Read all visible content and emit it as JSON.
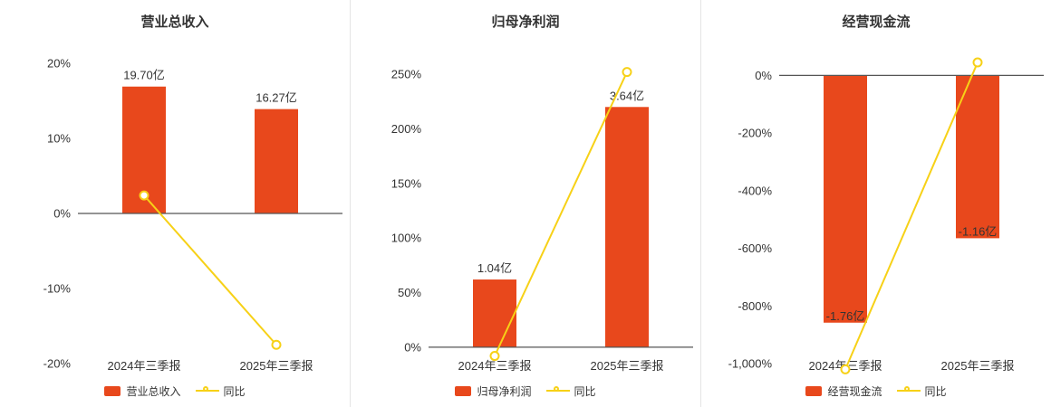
{
  "colors": {
    "bar": "#e8481c",
    "line": "#f7d117",
    "axis_line": "#555555",
    "text": "#333333",
    "divider": "#e4e4e4",
    "background": "#ffffff"
  },
  "chart_data": [
    {
      "type": "bar-line",
      "title": "营业总收入",
      "categories": [
        "2024年三季报",
        "2025年三季报"
      ],
      "bar_series": {
        "name": "营业总收入",
        "value_labels": [
          "19.70亿",
          "16.27亿"
        ],
        "plotted_pct": [
          16.9,
          13.9
        ]
      },
      "line_series": {
        "name": "同比",
        "plotted_pct": [
          2.4,
          -17.5
        ]
      },
      "y_axis": {
        "min": -20,
        "max": 20,
        "ticks": [
          {
            "v": 20,
            "label": "20%"
          },
          {
            "v": 10,
            "label": "10%"
          },
          {
            "v": 0,
            "label": "0%"
          },
          {
            "v": -10,
            "label": "-10%"
          },
          {
            "v": -20,
            "label": "-20%"
          }
        ]
      },
      "legend_position": "bottom",
      "grid": false
    },
    {
      "type": "bar-line",
      "title": "归母净利润",
      "categories": [
        "2024年三季报",
        "2025年三季报"
      ],
      "bar_series": {
        "name": "归母净利润",
        "value_labels": [
          "1.04亿",
          "3.64亿"
        ],
        "plotted_pct": [
          62,
          220
        ]
      },
      "line_series": {
        "name": "同比",
        "plotted_pct": [
          -8,
          252
        ]
      },
      "y_axis": {
        "min": -15,
        "max": 260,
        "ticks": [
          {
            "v": 250,
            "label": "250%"
          },
          {
            "v": 200,
            "label": "200%"
          },
          {
            "v": 150,
            "label": "150%"
          },
          {
            "v": 100,
            "label": "100%"
          },
          {
            "v": 50,
            "label": "50%"
          },
          {
            "v": 0,
            "label": "0%"
          }
        ]
      },
      "legend_position": "bottom",
      "grid": false
    },
    {
      "type": "bar-line",
      "title": "经营现金流",
      "categories": [
        "2024年三季报",
        "2025年三季报"
      ],
      "bar_series": {
        "name": "经营现金流",
        "value_labels": [
          "-1.76亿",
          "-1.16亿"
        ],
        "plotted_pct": [
          -858,
          -565
        ]
      },
      "line_series": {
        "name": "同比",
        "plotted_pct": [
          -1020,
          45
        ]
      },
      "y_axis": {
        "min": -1000,
        "max": 42,
        "ticks": [
          {
            "v": 0,
            "label": "0%"
          },
          {
            "v": -200,
            "label": "-200%"
          },
          {
            "v": -400,
            "label": "-400%"
          },
          {
            "v": -600,
            "label": "-600%"
          },
          {
            "v": -800,
            "label": "-800%"
          },
          {
            "v": -1000,
            "label": "-1,000%"
          }
        ]
      },
      "legend_position": "bottom",
      "grid": false
    }
  ]
}
